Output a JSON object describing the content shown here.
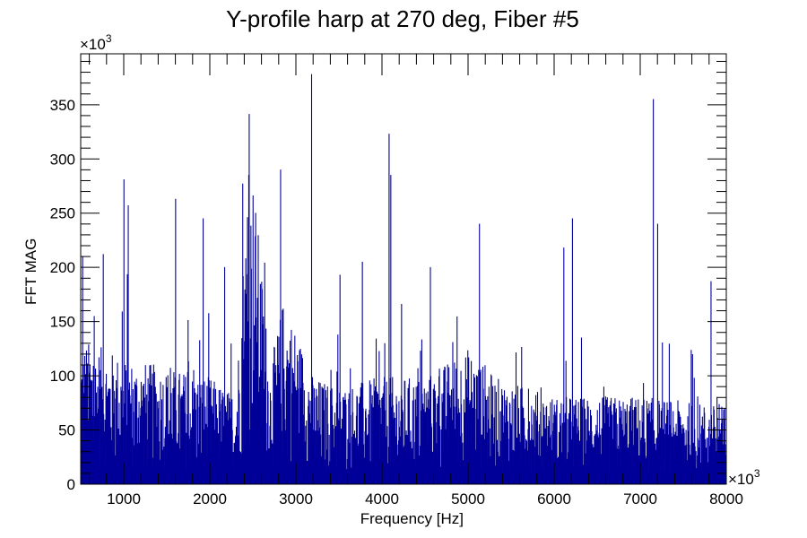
{
  "chart_data": {
    "type": "bar",
    "title": "Y-profile harp at 270 deg, Fiber #5",
    "xlabel": "Frequency [Hz]",
    "ylabel": "FFT MAG",
    "x_multiplier_label": "×10",
    "x_multiplier_exp": "3",
    "y_multiplier_label": "×10",
    "y_multiplier_exp": "3",
    "xlim": [
      500,
      8000
    ],
    "ylim": [
      0,
      397
    ],
    "xticks": [
      1000,
      2000,
      3000,
      4000,
      5000,
      6000,
      7000,
      8000
    ],
    "xtick_labels": [
      "1000",
      "2000",
      "3000",
      "4000",
      "5000",
      "6000",
      "7000",
      "8000"
    ],
    "yticks": [
      0,
      50,
      100,
      150,
      200,
      250,
      300,
      350
    ],
    "ytick_labels": [
      "0",
      "50",
      "100",
      "150",
      "200",
      "250",
      "300",
      "350"
    ],
    "grid": false,
    "series_color": "#000099",
    "bin_width": 5,
    "baseline_envelope": [
      [
        500,
        75
      ],
      [
        1000,
        65
      ],
      [
        1500,
        60
      ],
      [
        2000,
        55
      ],
      [
        2300,
        45
      ],
      [
        2400,
        130
      ],
      [
        2500,
        160
      ],
      [
        2600,
        110
      ],
      [
        2700,
        60
      ],
      [
        2850,
        95
      ],
      [
        3000,
        80
      ],
      [
        3200,
        55
      ],
      [
        3500,
        50
      ],
      [
        4000,
        55
      ],
      [
        4500,
        55
      ],
      [
        5000,
        70
      ],
      [
        5300,
        55
      ],
      [
        6000,
        45
      ],
      [
        7000,
        45
      ],
      [
        8000,
        40
      ]
    ],
    "peaks": [
      [
        520,
        210
      ],
      [
        760,
        212
      ],
      [
        1000,
        281
      ],
      [
        1050,
        257
      ],
      [
        1600,
        263
      ],
      [
        1920,
        245
      ],
      [
        2170,
        200
      ],
      [
        2380,
        277
      ],
      [
        2450,
        285
      ],
      [
        2820,
        290
      ],
      [
        3180,
        378
      ],
      [
        3510,
        193
      ],
      [
        3770,
        205
      ],
      [
        4080,
        323
      ],
      [
        4100,
        285
      ],
      [
        4560,
        200
      ],
      [
        5130,
        240
      ],
      [
        6110,
        218
      ],
      [
        6210,
        245
      ],
      [
        7150,
        355
      ],
      [
        7200,
        240
      ],
      [
        7820,
        187
      ]
    ]
  }
}
